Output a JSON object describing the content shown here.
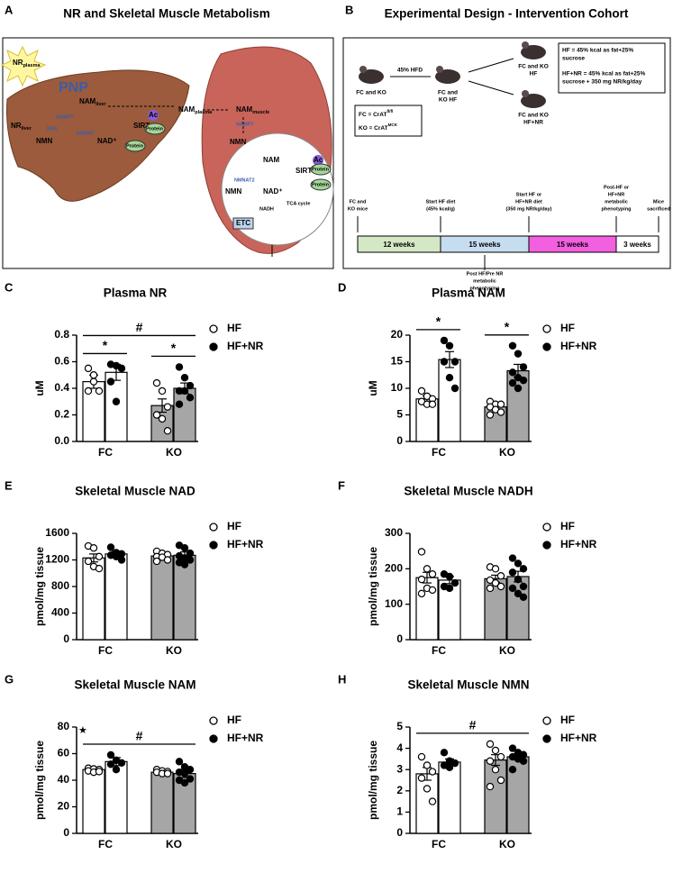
{
  "panel_a": {
    "letter": "A",
    "title": "NR and Skeletal Muscle Metabolism",
    "labels": [
      {
        "main": "NR",
        "sub": "plasma"
      },
      "PNP",
      {
        "main": "NAM",
        "sub": "liver"
      },
      {
        "main": "NR",
        "sub": "liver"
      },
      "NRK",
      "NAMPT",
      "NMNAT",
      "NMN",
      "NAD⁺",
      "SIRT",
      "Ac",
      "Protein",
      "Protein",
      {
        "main": "NAM",
        "sub": "plasma"
      },
      {
        "main": "NAM",
        "sub": "muscle"
      },
      "NAMPT",
      "NMN",
      "NAM",
      "SIRT",
      "Ac",
      "Protein",
      "Protein",
      "NMNAT2",
      "NMN",
      "NAD⁺",
      "TCA cycle",
      "NADH",
      "ETC"
    ]
  },
  "panel_b": {
    "letter": "B",
    "title": "Experimental Design - Intervention Cohort",
    "start_mice": [
      "FC and KO"
    ],
    "arrow_label": "45% HFD",
    "mid_mice": [
      "FC and",
      "KO HF"
    ],
    "top_mice": [
      "FC and KO",
      "HF"
    ],
    "bottom_mice": [
      "FC and KO",
      "HF+NR"
    ],
    "diet_def": [
      [
        "HF = 45% kcal as fat+25%",
        "sucrose"
      ],
      [
        "HF+NR = 45% kcal as fat+25%",
        "sucrose + 350 mg NR/kg/day"
      ]
    ],
    "genotypes": [
      {
        "main": "FC = CrAT",
        "sup": "fl/fl"
      },
      {
        "main": "KO = CrAT",
        "sup": "MCK"
      }
    ],
    "milestones": [
      [
        "FC and",
        "KO mice"
      ],
      [
        "Start HF diet",
        "(45% kcal/g)"
      ],
      [
        "Start HF or",
        "HF+NR diet",
        "(350 mg NR/kg/day)"
      ],
      [
        "Post-HF or",
        "HF+NR",
        "metabolic",
        "phenotyping"
      ],
      [
        "Mice",
        "sacrificed"
      ]
    ],
    "below": [
      "Post HF/Pre NR",
      "metabolic",
      "phenotyping"
    ],
    "segments": [
      {
        "label": "12 weeks",
        "color": "#d5e8c6"
      },
      {
        "label": "15 weeks",
        "color": "#c6dcef"
      },
      {
        "label": "15 weeks",
        "color": "#f25fdf"
      },
      {
        "label": "3 weeks",
        "color": "#ffffff"
      }
    ]
  },
  "chart_data": [
    {
      "type": "bar",
      "letter": "C",
      "title": "Plasma NR",
      "ylabel": "uM",
      "categories": [
        "FC",
        "KO"
      ],
      "category_colors": [
        "#ffffff",
        "#a6a6a6"
      ],
      "ylim": [
        0,
        0.8
      ],
      "yticks": [
        {
          "value": 0,
          "label": "0.0"
        },
        0.2,
        0.4,
        0.6,
        0.8
      ],
      "series": [
        {
          "name": "HF",
          "color": "#ffffff",
          "values": [
            0.45,
            0.27
          ],
          "errors": [
            0.05,
            0.05
          ],
          "points": [
            [
              0.55,
              0.45,
              0.38,
              0.38,
              0.5
            ],
            [
              0.44,
              0.38,
              0.26,
              0.2,
              0.17,
              0.08
            ]
          ]
        },
        {
          "name": "HF+NR",
          "color": "#000000",
          "values": [
            0.52,
            0.4
          ],
          "errors": [
            0.06,
            0.04
          ],
          "points": [
            [
              0.58,
              0.57,
              0.55,
              0.45,
              0.3
            ],
            [
              0.56,
              0.48,
              0.42,
              0.38,
              0.38,
              0.33,
              0.28
            ]
          ]
        }
      ],
      "annotations": [
        {
          "text": "*",
          "bars": [
            0,
            1
          ]
        },
        {
          "text": "*",
          "bars": [
            2,
            3
          ]
        },
        {
          "text": "#",
          "bars": [
            0,
            3
          ]
        }
      ]
    },
    {
      "type": "bar",
      "letter": "D",
      "title": "Plasma NAM",
      "ylabel": "uM",
      "categories": [
        "FC",
        "KO"
      ],
      "category_colors": [
        "#ffffff",
        "#a6a6a6"
      ],
      "ylim": [
        0,
        20
      ],
      "yticks": [
        0,
        5,
        10,
        15,
        20
      ],
      "series": [
        {
          "name": "HF",
          "color": "#ffffff",
          "values": [
            8.0,
            6.5
          ],
          "errors": [
            0.6,
            0.4
          ],
          "points": [
            [
              9.5,
              8.5,
              8,
              7.5,
              7,
              7
            ],
            [
              7.5,
              7,
              7,
              6.5,
              6,
              5.5,
              5
            ]
          ]
        },
        {
          "name": "HF+NR",
          "color": "#000000",
          "values": [
            15.4,
            13.3
          ],
          "errors": [
            1.5,
            1.2
          ],
          "points": [
            [
              19,
              18,
              15,
              15,
              12,
              10
            ],
            [
              18,
              16.5,
              14,
              13,
              12,
              11.5,
              11,
              10
            ]
          ]
        }
      ],
      "annotations": [
        {
          "text": "*",
          "bars": [
            0,
            1
          ]
        },
        {
          "text": "*",
          "bars": [
            2,
            3
          ]
        }
      ]
    },
    {
      "type": "bar",
      "letter": "E",
      "title": "Skeletal Muscle NAD",
      "ylabel": "pmol/mg tissue",
      "categories": [
        "FC",
        "KO"
      ],
      "category_colors": [
        "#ffffff",
        "#a6a6a6"
      ],
      "ylim": [
        0,
        1600
      ],
      "yticks": [
        0,
        400,
        800,
        1200,
        1600
      ],
      "series": [
        {
          "name": "HF",
          "color": "#ffffff",
          "values": [
            1230,
            1260
          ],
          "errors": [
            60,
            30
          ],
          "points": [
            [
              1410,
              1380,
              1250,
              1180,
              1100,
              1070
            ],
            [
              1330,
              1300,
              1280,
              1250,
              1240,
              1200,
              1180
            ]
          ]
        },
        {
          "name": "HF+NR",
          "color": "#000000",
          "values": [
            1290,
            1270
          ],
          "errors": [
            40,
            50
          ],
          "points": [
            [
              1390,
              1310,
              1290,
              1270,
              1250,
              1200
            ],
            [
              1420,
              1380,
              1300,
              1260,
              1230,
              1200,
              1160,
              1130
            ]
          ]
        }
      ],
      "annotations": []
    },
    {
      "type": "bar",
      "letter": "F",
      "title": "Skeletal Muscle NADH",
      "ylabel": "pmol/mg tissue",
      "categories": [
        "FC",
        "KO"
      ],
      "category_colors": [
        "#ffffff",
        "#a6a6a6"
      ],
      "ylim": [
        0,
        300
      ],
      "yticks": [
        0,
        100,
        200,
        300
      ],
      "series": [
        {
          "name": "HF",
          "color": "#ffffff",
          "values": [
            175,
            172
          ],
          "errors": [
            15,
            10
          ],
          "points": [
            [
              248,
              200,
              185,
              170,
              145,
              140,
              130
            ],
            [
              205,
              200,
              180,
              168,
              160,
              150,
              145
            ]
          ]
        },
        {
          "name": "HF+NR",
          "color": "#000000",
          "values": [
            168,
            178
          ],
          "errors": [
            10,
            15
          ],
          "points": [
            [
              185,
              178,
              160,
              150,
              145
            ],
            [
              230,
              215,
              200,
              190,
              170,
              150,
              145,
              130,
              120
            ]
          ]
        }
      ],
      "annotations": []
    },
    {
      "type": "bar",
      "letter": "G",
      "title": "Skeletal Muscle NAM",
      "ylabel": "pmol/mg tissue",
      "marker": "★",
      "categories": [
        "FC",
        "KO"
      ],
      "category_colors": [
        "#ffffff",
        "#a6a6a6"
      ],
      "ylim": [
        0,
        80
      ],
      "yticks": [
        0,
        20,
        40,
        60,
        80
      ],
      "series": [
        {
          "name": "HF",
          "color": "#ffffff",
          "values": [
            48,
            46
          ],
          "errors": [
            1,
            1
          ],
          "points": [
            [
              49,
              48.5,
              48,
              47,
              46,
              46.5
            ],
            [
              48,
              47,
              46.5,
              46,
              45,
              45
            ]
          ]
        },
        {
          "name": "HF+NR",
          "color": "#000000",
          "values": [
            54,
            45
          ],
          "errors": [
            3,
            3
          ],
          "points": [
            [
              59,
              55,
              53,
              52,
              48
            ],
            [
              54,
              50,
              48,
              46,
              45,
              41,
              40,
              38
            ]
          ]
        }
      ],
      "annotations": [
        {
          "text": "#",
          "bars": [
            0,
            3
          ]
        }
      ]
    },
    {
      "type": "bar",
      "letter": "H",
      "title": "Skeletal Muscle NMN",
      "ylabel": "pmol/mg tissue",
      "categories": [
        "FC",
        "KO"
      ],
      "category_colors": [
        "#ffffff",
        "#a6a6a6"
      ],
      "ylim": [
        0,
        5
      ],
      "yticks": [
        0,
        1,
        2,
        3,
        4,
        5
      ],
      "series": [
        {
          "name": "HF",
          "color": "#ffffff",
          "values": [
            2.8,
            3.45
          ],
          "errors": [
            0.3,
            0.25
          ],
          "points": [
            [
              3.6,
              3.2,
              2.9,
              2.6,
              2.1,
              1.5
            ],
            [
              4.2,
              3.9,
              3.6,
              3.4,
              3.0,
              2.5,
              2.2
            ]
          ]
        },
        {
          "name": "HF+NR",
          "color": "#000000",
          "values": [
            3.35,
            3.6
          ],
          "errors": [
            0.15,
            0.12
          ],
          "points": [
            [
              3.8,
              3.4,
              3.3,
              3.2,
              3.1
            ],
            [
              4.0,
              3.8,
              3.7,
              3.6,
              3.5,
              3.4,
              3.0
            ]
          ]
        }
      ],
      "annotations": [
        {
          "text": "#",
          "bars": [
            0,
            3
          ]
        }
      ]
    }
  ]
}
